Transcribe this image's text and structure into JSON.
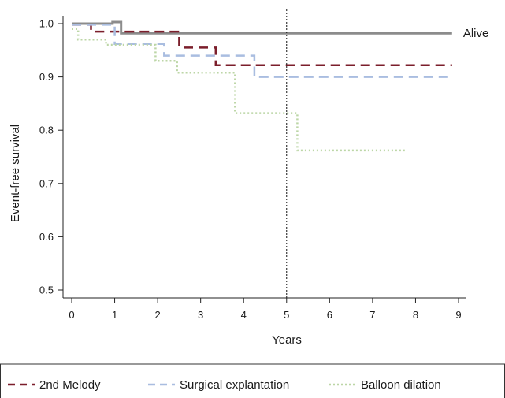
{
  "chart_data": {
    "type": "line",
    "step": true,
    "xlabel": "Years",
    "ylabel": "Event-free survival",
    "xlim": [
      0,
      9
    ],
    "ylim": [
      0.5,
      1.0
    ],
    "x_ticks": [
      "0",
      "1",
      "2",
      "3",
      "4",
      "5",
      "6",
      "7",
      "8",
      "9"
    ],
    "y_ticks": [
      "0.5",
      "0.6",
      "0.7",
      "0.8",
      "0.9",
      "1.0"
    ],
    "reference_line": {
      "x": 5,
      "style": "dotted"
    },
    "grid": false,
    "legend_position": "bottom",
    "series": [
      {
        "name": "Alive",
        "color": "#8c8c8c",
        "dash": "solid",
        "legend": false,
        "end_label": "Alive",
        "points": [
          [
            0,
            1.0
          ],
          [
            0.95,
            1.0
          ],
          [
            0.95,
            1.003
          ],
          [
            1.15,
            1.003
          ],
          [
            1.15,
            0.982
          ],
          [
            8.85,
            0.982
          ]
        ]
      },
      {
        "name": "2nd Melody",
        "color": "#7b1e2b",
        "dash": "dashed",
        "legend": true,
        "points": [
          [
            0,
            0.998
          ],
          [
            0.45,
            0.998
          ],
          [
            0.45,
            0.985
          ],
          [
            2.5,
            0.985
          ],
          [
            2.5,
            0.955
          ],
          [
            3.35,
            0.955
          ],
          [
            3.35,
            0.922
          ],
          [
            8.85,
            0.922
          ]
        ]
      },
      {
        "name": "Surgical explantation",
        "color": "#a9bde0",
        "dash": "dashed",
        "legend": true,
        "points": [
          [
            0,
            0.998
          ],
          [
            1.0,
            0.998
          ],
          [
            1.0,
            0.962
          ],
          [
            2.15,
            0.962
          ],
          [
            2.15,
            0.94
          ],
          [
            4.25,
            0.94
          ],
          [
            4.25,
            0.9
          ],
          [
            8.85,
            0.9
          ]
        ]
      },
      {
        "name": "Balloon dilation",
        "color": "#bcd6a6",
        "dash": "dotted",
        "legend": true,
        "points": [
          [
            0,
            0.99
          ],
          [
            0.15,
            0.99
          ],
          [
            0.15,
            0.97
          ],
          [
            0.8,
            0.97
          ],
          [
            0.8,
            0.96
          ],
          [
            1.95,
            0.96
          ],
          [
            1.95,
            0.93
          ],
          [
            2.45,
            0.93
          ],
          [
            2.45,
            0.908
          ],
          [
            3.8,
            0.908
          ],
          [
            3.8,
            0.832
          ],
          [
            5.25,
            0.832
          ],
          [
            5.25,
            0.762
          ],
          [
            7.75,
            0.762
          ]
        ]
      }
    ]
  }
}
